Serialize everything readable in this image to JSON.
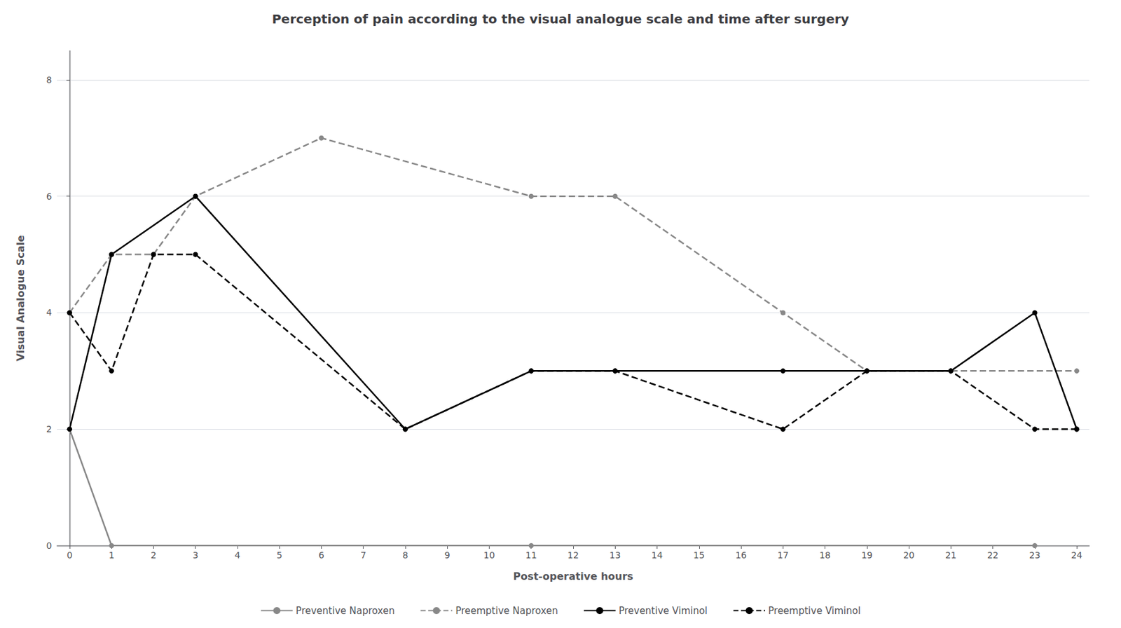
{
  "chart_data": {
    "type": "line",
    "title": "Perception of pain according to the visual analogue scale and time after surgery",
    "x_label": "Post-operative hours",
    "y_label": "Visual Analogue Scale",
    "xlim": [
      -0.3,
      24.3
    ],
    "xticks": [
      0,
      1,
      2,
      3,
      4,
      5,
      6,
      7,
      8,
      9,
      10,
      11,
      12,
      13,
      14,
      15,
      16,
      17,
      18,
      19,
      20,
      21,
      22,
      23,
      24
    ],
    "ylim": [
      0,
      8.5
    ],
    "yticks": [
      0,
      2,
      4,
      6,
      8
    ],
    "grid": "y",
    "legend": "bottom",
    "series": [
      {
        "name": "Preventive Naproxen",
        "color": "#888888",
        "line_style": "solid",
        "marker": "circle",
        "x": [
          0,
          1,
          11,
          23
        ],
        "values": [
          2,
          0,
          0,
          0
        ]
      },
      {
        "name": "Preemptive Naproxen",
        "color": "#888888",
        "line_style": "dashed",
        "marker": "circle",
        "x": [
          0,
          1,
          2,
          3,
          6,
          11,
          13,
          17,
          19,
          21,
          24
        ],
        "values": [
          4,
          5,
          5,
          6,
          7,
          6,
          6,
          4,
          3,
          3,
          3
        ]
      },
      {
        "name": "Preventive Viminol",
        "color": "#000000",
        "line_style": "solid",
        "marker": "circle",
        "x": [
          0,
          1,
          3,
          8,
          11,
          13,
          17,
          19,
          21,
          23,
          24
        ],
        "values": [
          2,
          5,
          6,
          2,
          3,
          3,
          3,
          3,
          3,
          4,
          2
        ]
      },
      {
        "name": "Preemptive Viminol",
        "color": "#000000",
        "line_style": "dashed",
        "marker": "circle",
        "x": [
          0,
          1,
          2,
          3,
          8,
          11,
          13,
          17,
          19,
          21,
          23,
          24
        ],
        "values": [
          4,
          3,
          5,
          5,
          2,
          3,
          3,
          2,
          3,
          3,
          2,
          2
        ]
      }
    ]
  }
}
